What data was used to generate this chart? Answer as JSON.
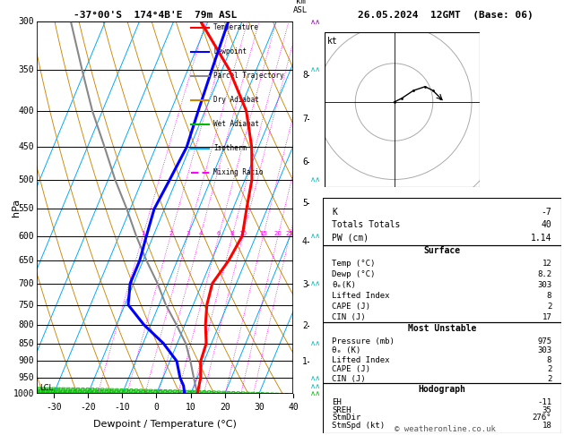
{
  "title_left": "-37°00'S  174°4B'E  79m ASL",
  "title_right": "26.05.2024  12GMT  (Base: 06)",
  "xlabel": "Dewpoint / Temperature (°C)",
  "ylabel_left": "hPa",
  "pressure_major": [
    300,
    350,
    400,
    450,
    500,
    550,
    600,
    650,
    700,
    750,
    800,
    850,
    900,
    950,
    1000
  ],
  "temp_xlim": [
    -35,
    40
  ],
  "temp_xticks": [
    -30,
    -20,
    -10,
    0,
    10,
    20,
    30,
    40
  ],
  "bg_color": "#ffffff",
  "sounding_temp": {
    "pressure": [
      1000,
      975,
      950,
      900,
      850,
      800,
      750,
      700,
      650,
      600,
      550,
      500,
      450,
      400,
      350,
      300
    ],
    "temp": [
      12,
      11.5,
      11,
      9,
      8.5,
      6,
      4,
      3,
      5,
      6,
      4,
      2,
      -2,
      -8,
      -18,
      -32
    ]
  },
  "sounding_dewp": {
    "pressure": [
      1000,
      975,
      950,
      900,
      850,
      800,
      750,
      700,
      650,
      600,
      550,
      500,
      450,
      400,
      350,
      300
    ],
    "dewp": [
      8.2,
      7,
      5,
      2,
      -4,
      -12,
      -19,
      -21,
      -21,
      -22,
      -23,
      -22,
      -21,
      -22,
      -23,
      -24
    ]
  },
  "parcel_trajectory": {
    "pressure": [
      1000,
      975,
      950,
      900,
      850,
      800,
      750,
      700,
      650,
      600,
      550,
      500,
      450,
      400,
      350,
      300
    ],
    "temp": [
      12,
      10.5,
      9.0,
      6.0,
      2.5,
      -2.5,
      -8,
      -13,
      -19,
      -25,
      -31,
      -38,
      -45,
      -53,
      -61,
      -70
    ]
  },
  "lcl_pressure": 962,
  "colors": {
    "temperature": "#ff0000",
    "dewpoint": "#0000ff",
    "parcel": "#888888",
    "dry_adiabat": "#cc8800",
    "wet_adiabat": "#00bb00",
    "isotherm": "#00aaff",
    "mixing_ratio": "#ff00ff",
    "wind_barb_cyan": "#00bbbb",
    "wind_barb_green": "#00bb00",
    "wind_barb_purple": "#9900cc"
  },
  "mixing_ratio_values": [
    1,
    2,
    3,
    4,
    6,
    8,
    10,
    15,
    20,
    25
  ],
  "km_asl_ticks": [
    1,
    2,
    3,
    4,
    5,
    6,
    7,
    8
  ],
  "km_asl_pressures": [
    902,
    802,
    703,
    612,
    540,
    473,
    411,
    357
  ],
  "legend_items": [
    {
      "label": "Temperature",
      "color": "#ff0000",
      "style": "solid"
    },
    {
      "label": "Dewpoint",
      "color": "#0000ff",
      "style": "solid"
    },
    {
      "label": "Parcel Trajectory",
      "color": "#888888",
      "style": "solid"
    },
    {
      "label": "Dry Adiabat",
      "color": "#cc8800",
      "style": "solid"
    },
    {
      "label": "Wet Adiabat",
      "color": "#00bb00",
      "style": "solid"
    },
    {
      "label": "Isotherm",
      "color": "#00aaff",
      "style": "solid"
    },
    {
      "label": "Mixing Ratio",
      "color": "#ff00ff",
      "style": "dashed"
    }
  ],
  "stability_indices": [
    [
      "K",
      "-7"
    ],
    [
      "Totals Totals",
      "40"
    ],
    [
      "PW (cm)",
      "1.14"
    ]
  ],
  "surface_data": [
    [
      "Temp (°C)",
      "12"
    ],
    [
      "Dewp (°C)",
      "8.2"
    ],
    [
      "θₑ(K)",
      "303"
    ],
    [
      "Lifted Index",
      "8"
    ],
    [
      "CAPE (J)",
      "2"
    ],
    [
      "CIN (J)",
      "17"
    ]
  ],
  "most_unstable_data": [
    [
      "Pressure (mb)",
      "975"
    ],
    [
      "θₑ (K)",
      "303"
    ],
    [
      "Lifted Index",
      "8"
    ],
    [
      "CAPE (J)",
      "2"
    ],
    [
      "CIN (J)",
      "2"
    ]
  ],
  "hodograph_data": [
    [
      "EH",
      "-11"
    ],
    [
      "SREH",
      "35"
    ],
    [
      "StmDir",
      "276°"
    ],
    [
      "StmSpd (kt)",
      "18"
    ]
  ],
  "copyright": "© weatheronline.co.uk",
  "hodo_wind_u": [
    0,
    2,
    5,
    8,
    10,
    12
  ],
  "hodo_wind_v": [
    0,
    1,
    3,
    4,
    3,
    1
  ],
  "hodo_storm_u": 13,
  "hodo_storm_v": 0
}
